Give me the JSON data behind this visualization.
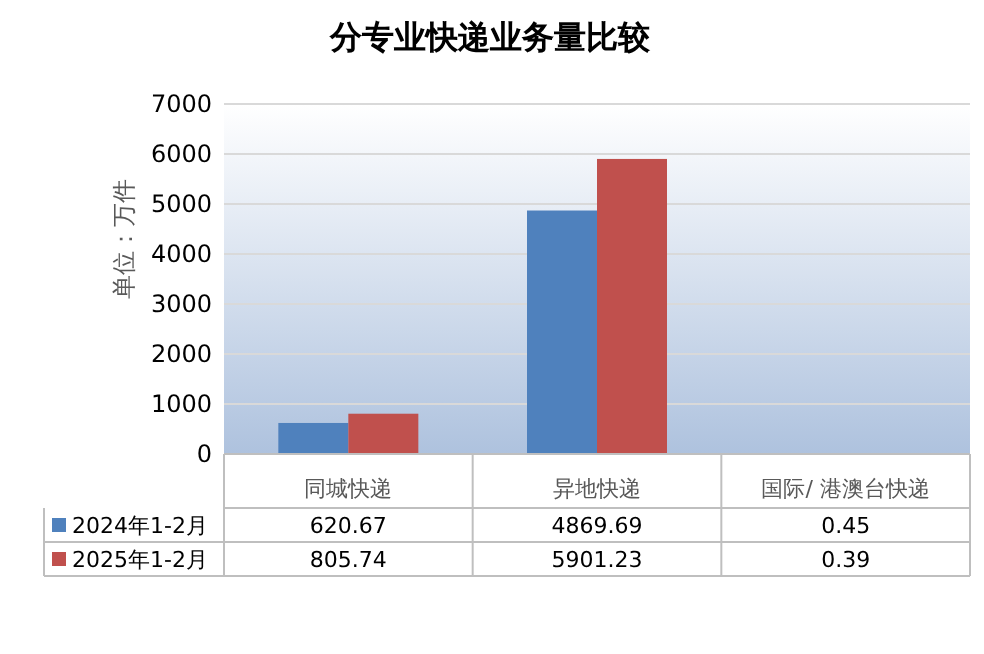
{
  "chart_data": {
    "type": "bar",
    "title": "分专业快递业务量比较",
    "ylabel": "单位：万件",
    "categories": [
      "同城快递",
      "异地快递",
      "国际/ 港澳台快递"
    ],
    "series": [
      {
        "name": "2024年1-2月",
        "color": "#4f81bd",
        "values": [
          620.67,
          4869.69,
          0.45
        ]
      },
      {
        "name": "2025年1-2月",
        "color": "#c0504d",
        "values": [
          805.74,
          5901.23,
          0.39
        ]
      }
    ],
    "ylim": [
      0,
      7000
    ],
    "yticks": [
      0,
      1000,
      2000,
      3000,
      4000,
      5000,
      6000,
      7000
    ],
    "grid": "y",
    "legend": "bottom",
    "data_labels": true
  }
}
